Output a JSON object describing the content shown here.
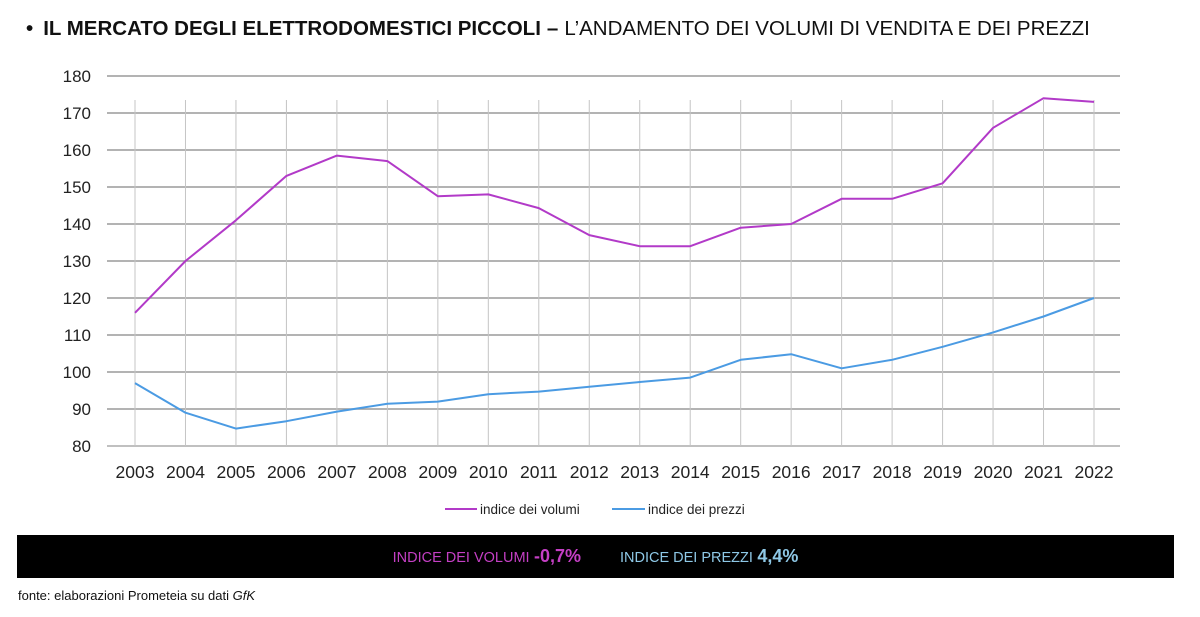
{
  "title": {
    "bullet": "•",
    "bold_part": "IL MERCATO DEGLI ELETTRODOMESTICI PICCOLI",
    "separator": "–",
    "light_part": "L’ANDAMENTO DEI VOLUMI DI VENDITA E DEI PREZZI"
  },
  "chart_data": {
    "type": "line",
    "title": "",
    "xlabel": "",
    "ylabel": "",
    "x": [
      "2003",
      "2004",
      "2005",
      "2006",
      "2007",
      "2008",
      "2009",
      "2010",
      "2011",
      "2012",
      "2013",
      "2014",
      "2015",
      "2016",
      "2017",
      "2018",
      "2019",
      "2020",
      "2021",
      "2022"
    ],
    "ylim": [
      80,
      180
    ],
    "yticks": [
      80,
      90,
      100,
      110,
      120,
      130,
      140,
      150,
      160,
      170,
      180
    ],
    "grid": "horizontal and vertical",
    "legend_position": "bottom-center",
    "series": [
      {
        "name": "indice dei volumi",
        "color": "#b23ac8",
        "values": [
          116,
          130,
          141,
          153,
          158.5,
          157,
          147.5,
          148,
          144.3,
          137,
          134,
          134,
          139,
          140,
          146.8,
          146.8,
          151,
          166,
          174,
          173
        ]
      },
      {
        "name": "indice dei prezzi",
        "color": "#4b9be3",
        "values": [
          97,
          89,
          84.7,
          86.7,
          89.3,
          91.4,
          92,
          94,
          94.7,
          96,
          97.3,
          98.5,
          103.3,
          104.8,
          101,
          103.3,
          106.8,
          110.7,
          115,
          120
        ]
      }
    ]
  },
  "summary_band": {
    "volumi_label": "INDICE DEI VOLUMI",
    "volumi_value": "-0,7%",
    "volumi_color": "#c43fc4",
    "prezzi_label": "INDICE DEI PREZZI",
    "prezzi_value": "4,4%",
    "prezzi_color": "#8ec8e6"
  },
  "source": {
    "prefix": "fonte: elaborazioni Prometeia su dati",
    "italic": "GfK"
  }
}
